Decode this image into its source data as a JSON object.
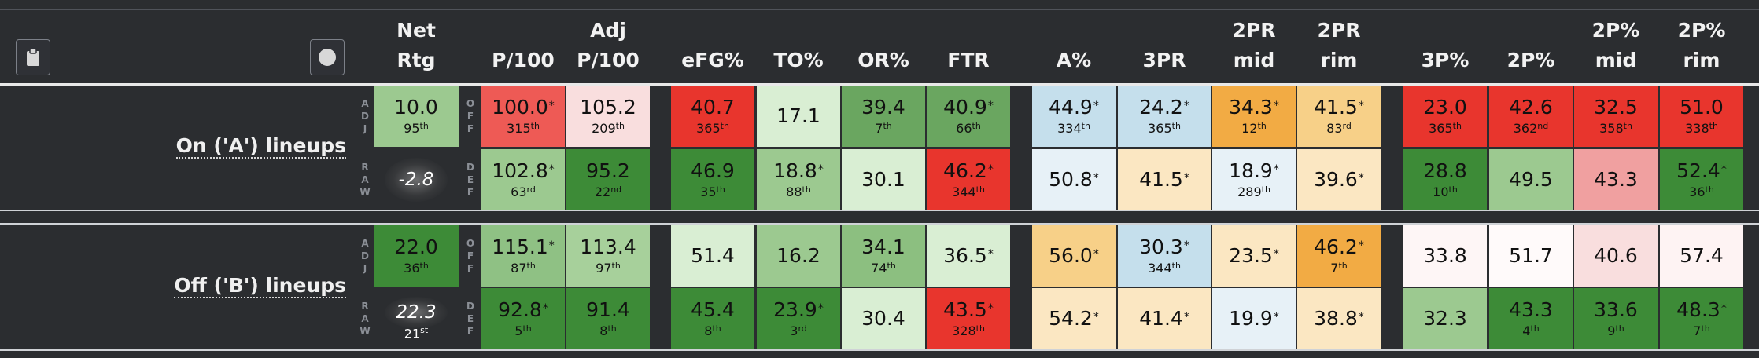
{
  "colors": {
    "bg": "#2b2d30",
    "header_text": "#f2f2f2",
    "dark_green": "#3d8b37",
    "mid_green": "#6aa660",
    "light_green": "#9cc990",
    "pale_green": "#d9eed3",
    "red": "#e8352d",
    "light_red": "#f0a0a0",
    "pale_red": "#f9dede",
    "light_blue": "#c5dfec",
    "pale_blue": "#e7f1f7",
    "orange": "#f2ab44",
    "light_orange": "#f7d088",
    "pale_orange": "#fbe7c2"
  },
  "toolbar": {
    "left_icon": "clipboard-icon",
    "right_icon": "circle-icon"
  },
  "headers": {
    "net": [
      "Net",
      "Rtg"
    ],
    "p100": [
      "",
      "P/100"
    ],
    "adjp100": [
      "Adj",
      "P/100"
    ],
    "efg": [
      "",
      "eFG%"
    ],
    "to": [
      "",
      "TO%"
    ],
    "or": [
      "",
      "OR%"
    ],
    "ftr": [
      "",
      "FTR"
    ],
    "a": [
      "",
      "A%"
    ],
    "threepr": [
      "",
      "3PR"
    ],
    "twoprmid": [
      "2PR",
      "mid"
    ],
    "twoprrim": [
      "2PR",
      "rim"
    ],
    "threep": [
      "",
      "3P%"
    ],
    "twop": [
      "",
      "2P%"
    ],
    "twopmid": [
      "2P%",
      "mid"
    ],
    "twoprim": [
      "2P%",
      "rim"
    ]
  },
  "side_labels": {
    "adj": [
      "A",
      "D",
      "J"
    ],
    "raw": [
      "R",
      "A",
      "W"
    ],
    "off": [
      "O",
      "F",
      "F"
    ],
    "def": [
      "D",
      "E",
      "F"
    ]
  },
  "groups": [
    {
      "label": "On ('A') lineups",
      "net_adj": {
        "v": "10.0",
        "r": "95",
        "s": "th"
      },
      "net_raw": {
        "v": "-2.8"
      },
      "off": [
        {
          "v": "100.0",
          "star": true,
          "r": "315",
          "s": "th"
        },
        {
          "v": "105.2",
          "r": "209",
          "s": "th"
        },
        {
          "v": "40.7",
          "r": "365",
          "s": "th"
        },
        {
          "v": "17.1"
        },
        {
          "v": "39.4",
          "r": "7",
          "s": "th"
        },
        {
          "v": "40.9",
          "star": true,
          "r": "66",
          "s": "th"
        },
        {
          "v": "44.9",
          "star": true,
          "r": "334",
          "s": "th"
        },
        {
          "v": "24.2",
          "star": true,
          "r": "365",
          "s": "th"
        },
        {
          "v": "34.3",
          "star": true,
          "r": "12",
          "s": "th"
        },
        {
          "v": "41.5",
          "star": true,
          "r": "83",
          "s": "rd"
        },
        {
          "v": "23.0",
          "r": "365",
          "s": "th"
        },
        {
          "v": "42.6",
          "r": "362",
          "s": "nd"
        },
        {
          "v": "32.5",
          "r": "358",
          "s": "th"
        },
        {
          "v": "51.0",
          "r": "338",
          "s": "th"
        }
      ],
      "def": [
        {
          "v": "102.8",
          "star": true,
          "r": "63",
          "s": "rd"
        },
        {
          "v": "95.2",
          "r": "22",
          "s": "nd"
        },
        {
          "v": "46.9",
          "r": "35",
          "s": "th"
        },
        {
          "v": "18.8",
          "star": true,
          "r": "88",
          "s": "th"
        },
        {
          "v": "30.1"
        },
        {
          "v": "46.2",
          "star": true,
          "r": "344",
          "s": "th"
        },
        {
          "v": "50.8",
          "star": true
        },
        {
          "v": "41.5",
          "star": true
        },
        {
          "v": "18.9",
          "star": true,
          "r": "289",
          "s": "th"
        },
        {
          "v": "39.6",
          "star": true
        },
        {
          "v": "28.8",
          "r": "10",
          "s": "th"
        },
        {
          "v": "49.5"
        },
        {
          "v": "43.3"
        },
        {
          "v": "52.4",
          "star": true,
          "r": "36",
          "s": "th"
        }
      ]
    },
    {
      "label": "Off ('B') lineups",
      "net_adj": {
        "v": "22.0",
        "r": "36",
        "s": "th"
      },
      "net_raw": {
        "v": "22.3",
        "r": "21",
        "s": "st"
      },
      "off": [
        {
          "v": "115.1",
          "star": true,
          "r": "87",
          "s": "th"
        },
        {
          "v": "113.4",
          "r": "97",
          "s": "th"
        },
        {
          "v": "51.4"
        },
        {
          "v": "16.2"
        },
        {
          "v": "34.1",
          "r": "74",
          "s": "th"
        },
        {
          "v": "36.5",
          "star": true
        },
        {
          "v": "56.0",
          "star": true
        },
        {
          "v": "30.3",
          "star": true,
          "r": "344",
          "s": "th"
        },
        {
          "v": "23.5",
          "star": true
        },
        {
          "v": "46.2",
          "star": true,
          "r": "7",
          "s": "th"
        },
        {
          "v": "33.8"
        },
        {
          "v": "51.7"
        },
        {
          "v": "40.6"
        },
        {
          "v": "57.4"
        }
      ],
      "def": [
        {
          "v": "92.8",
          "star": true,
          "r": "5",
          "s": "th"
        },
        {
          "v": "91.4",
          "r": "8",
          "s": "th"
        },
        {
          "v": "45.4",
          "r": "8",
          "s": "th"
        },
        {
          "v": "23.9",
          "star": true,
          "r": "3",
          "s": "rd"
        },
        {
          "v": "30.4"
        },
        {
          "v": "43.5",
          "star": true,
          "r": "328",
          "s": "th"
        },
        {
          "v": "54.2",
          "star": true
        },
        {
          "v": "41.4",
          "star": true
        },
        {
          "v": "19.9",
          "star": true
        },
        {
          "v": "38.8",
          "star": true
        },
        {
          "v": "32.3"
        },
        {
          "v": "43.3",
          "r": "4",
          "s": "th"
        },
        {
          "v": "33.6",
          "r": "9",
          "s": "th"
        },
        {
          "v": "48.3",
          "star": true,
          "r": "7",
          "s": "th"
        }
      ]
    }
  ]
}
